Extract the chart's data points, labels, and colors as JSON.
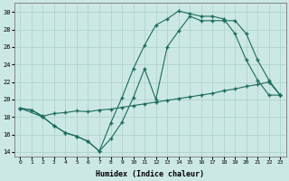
{
  "xlabel": "Humidex (Indice chaleur)",
  "bg_color": "#cce8e4",
  "line_color": "#1a6b5e",
  "grid_color": "#aacfca",
  "xlim": [
    -0.5,
    23.5
  ],
  "ylim": [
    13.5,
    31.0
  ],
  "yticks": [
    14,
    16,
    18,
    20,
    22,
    24,
    26,
    28,
    30
  ],
  "xticks": [
    0,
    1,
    2,
    3,
    4,
    5,
    6,
    7,
    8,
    9,
    10,
    11,
    12,
    13,
    14,
    15,
    16,
    17,
    18,
    19,
    20,
    21,
    22,
    23
  ],
  "s1x": [
    0,
    1,
    2,
    3,
    4,
    5,
    6,
    7,
    8,
    9,
    10,
    11,
    12,
    13,
    14,
    15,
    16,
    17,
    18,
    19,
    20,
    21,
    22,
    23
  ],
  "s1y": [
    19.0,
    18.8,
    18.0,
    17.0,
    16.2,
    15.8,
    15.2,
    14.1,
    17.3,
    20.2,
    23.5,
    26.2,
    28.5,
    29.2,
    30.1,
    29.8,
    29.5,
    29.5,
    29.2,
    27.5,
    24.5,
    22.2,
    20.5,
    20.5
  ],
  "s2x": [
    0,
    2,
    3,
    4,
    5,
    6,
    7,
    8,
    9,
    10,
    11,
    12,
    13,
    14,
    15,
    16,
    17,
    18,
    19,
    20,
    21,
    22,
    23
  ],
  "s2y": [
    19.0,
    18.0,
    17.0,
    16.2,
    15.8,
    15.2,
    14.1,
    15.5,
    17.4,
    20.2,
    23.5,
    20.0,
    26.0,
    27.8,
    29.5,
    29.0,
    29.0,
    29.0,
    29.0,
    27.5,
    24.5,
    22.2,
    20.5
  ],
  "s3x": [
    0,
    1,
    2,
    3,
    4,
    5,
    6,
    7,
    8,
    9,
    10,
    11,
    12,
    13,
    14,
    15,
    16,
    17,
    18,
    19,
    20,
    21,
    22,
    23
  ],
  "s3y": [
    19.0,
    18.8,
    18.1,
    18.4,
    18.5,
    18.7,
    18.6,
    18.8,
    18.9,
    19.1,
    19.3,
    19.5,
    19.7,
    19.9,
    20.1,
    20.3,
    20.5,
    20.7,
    21.0,
    21.2,
    21.5,
    21.7,
    22.0,
    20.5
  ]
}
